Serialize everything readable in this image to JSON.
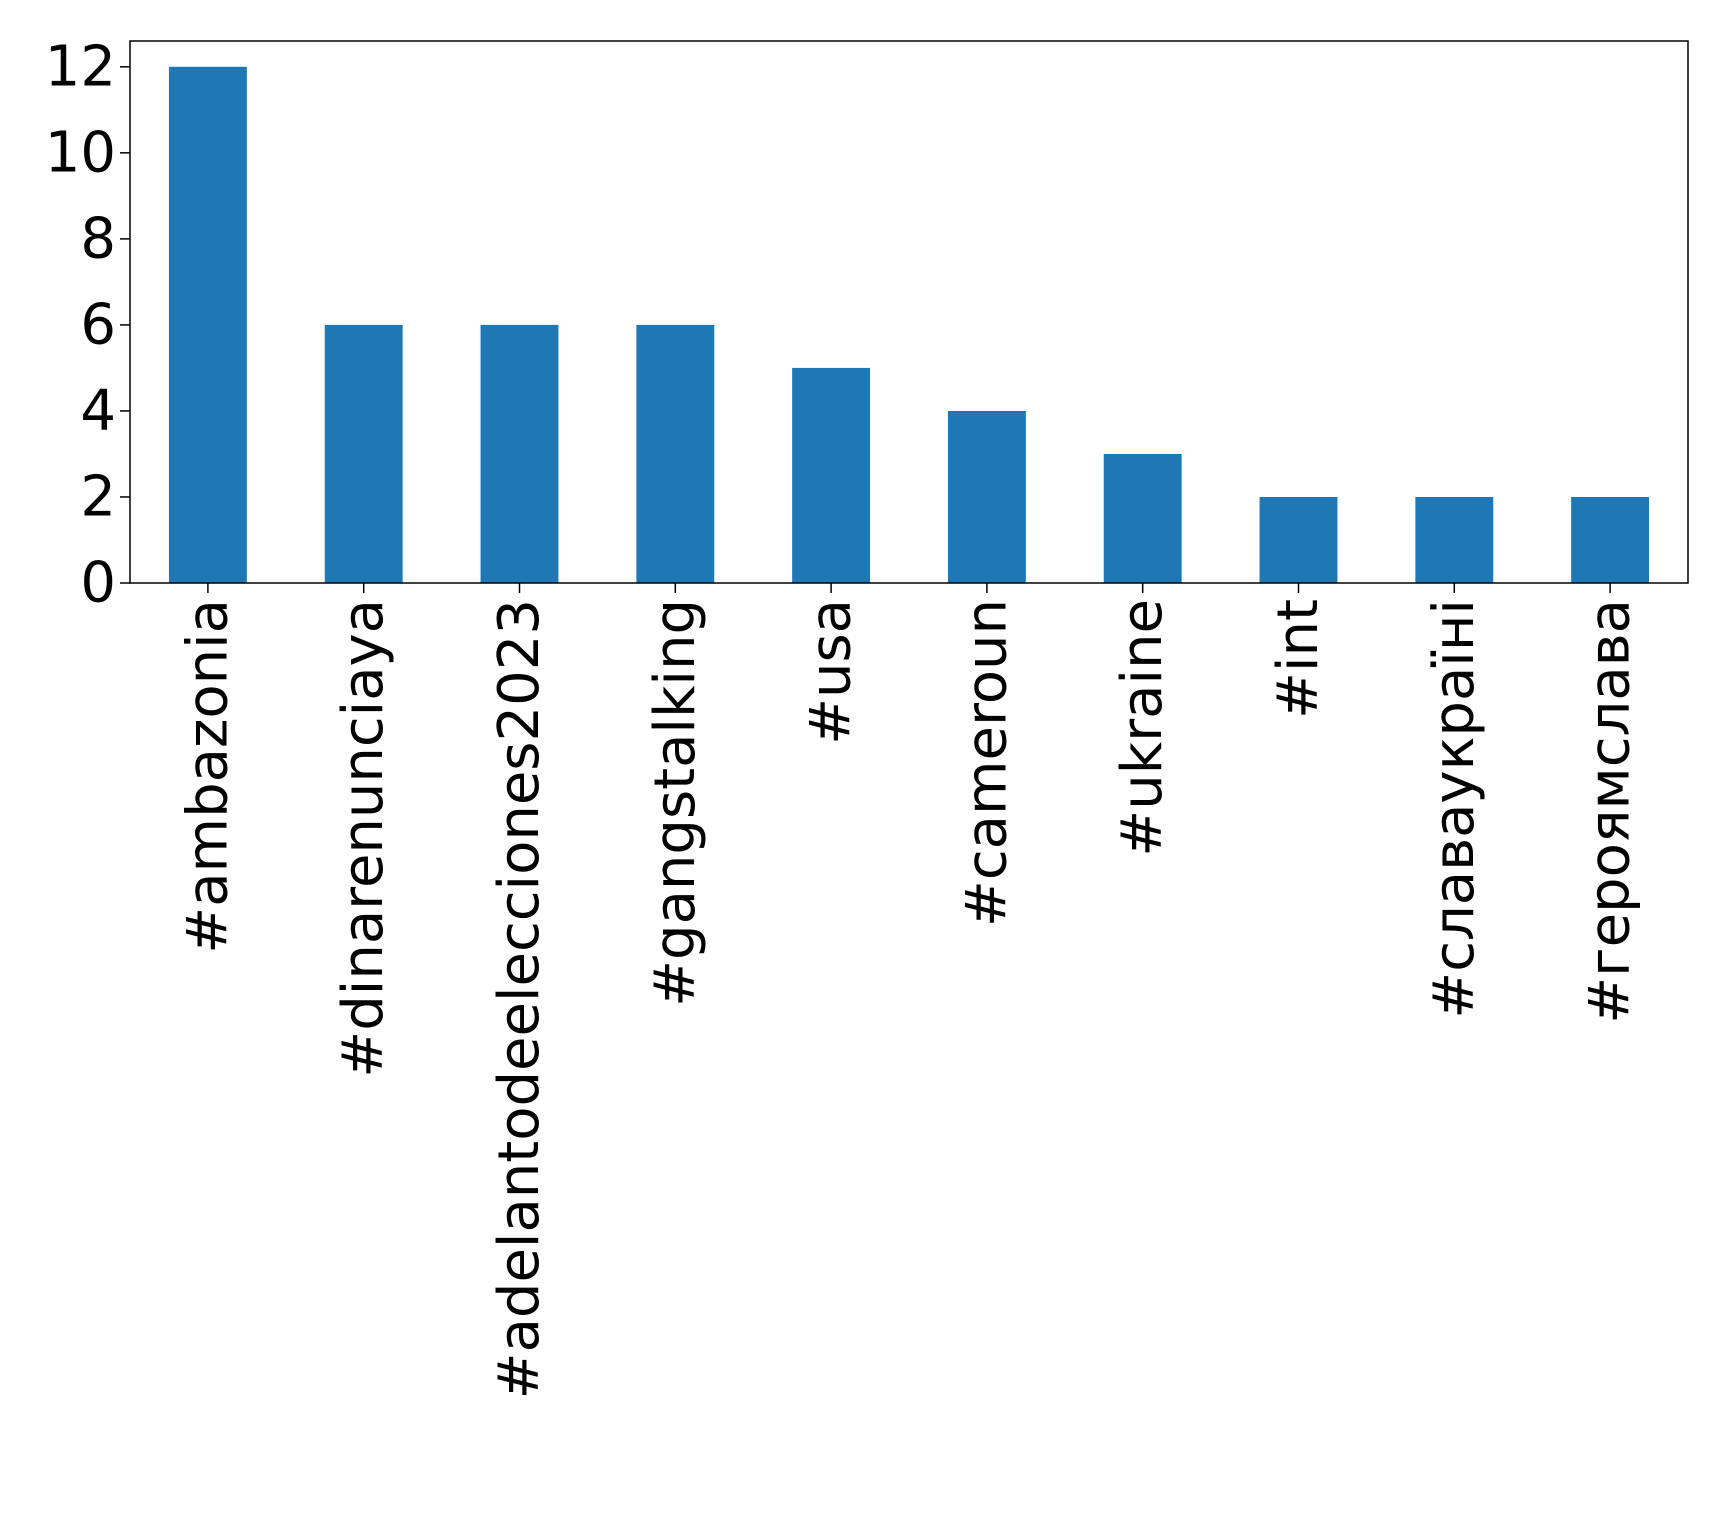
{
  "chart_data": {
    "type": "bar",
    "title": "",
    "xlabel": "",
    "ylabel": "",
    "categories": [
      "#ambazonia",
      "#dinarenunciaya",
      "#adelantodeelecciones2023",
      "#gangstalking",
      "#usa",
      "#cameroun",
      "#ukraine",
      "#int",
      "#славаукраїні",
      "#героямслава"
    ],
    "values": [
      12,
      6,
      6,
      6,
      5,
      4,
      3,
      2,
      2,
      2
    ],
    "ylim": [
      0,
      12.6
    ],
    "yticks": [
      0,
      2,
      4,
      6,
      8,
      10,
      12
    ],
    "grid": false,
    "legend": false,
    "bar_color": "#1f77b4"
  }
}
